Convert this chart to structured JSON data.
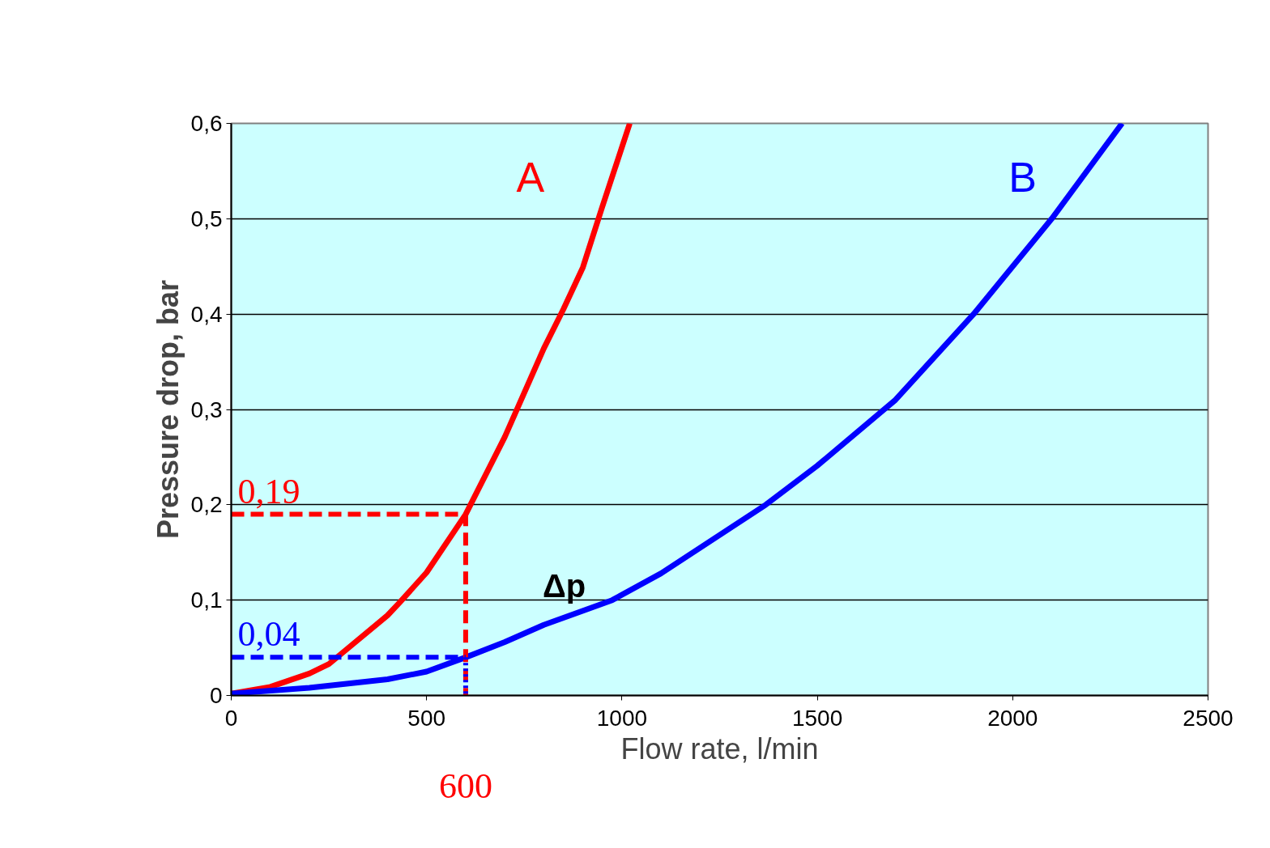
{
  "chart_data": {
    "type": "line",
    "xlabel": "Flow rate, l/min",
    "ylabel": "Pressure drop, bar",
    "xlim": [
      0,
      2500
    ],
    "xticks": [
      0,
      500,
      1000,
      1500,
      2000,
      2500
    ],
    "ylim": [
      0,
      0.6
    ],
    "yticks": [
      {
        "value": 0,
        "label": "0"
      },
      {
        "value": 0.1,
        "label": "0,1"
      },
      {
        "value": 0.2,
        "label": "0,2"
      },
      {
        "value": 0.3,
        "label": "0,3"
      },
      {
        "value": 0.4,
        "label": "0,4"
      },
      {
        "value": 0.5,
        "label": "0,5"
      },
      {
        "value": 0.6,
        "label": "0,6"
      }
    ],
    "grid": "y",
    "line_style": "solid",
    "series": [
      {
        "name": "A",
        "color": "#ff0000",
        "x": [
          0,
          100,
          200,
          250,
          300,
          400,
          430,
          500,
          600,
          700,
          800,
          850,
          900,
          950,
          1020
        ],
        "values": [
          0.002,
          0.009,
          0.023,
          0.033,
          0.05,
          0.084,
          0.097,
          0.129,
          0.19,
          0.271,
          0.364,
          0.405,
          0.449,
          0.513,
          0.6
        ]
      },
      {
        "name": "B",
        "color": "#0000ff",
        "x": [
          0,
          200,
          400,
          500,
          600,
          700,
          800,
          975,
          1100,
          1368,
          1500,
          1700,
          1900,
          2100,
          2280
        ],
        "values": [
          0.002,
          0.008,
          0.017,
          0.025,
          0.04,
          0.056,
          0.074,
          0.1,
          0.128,
          0.2,
          0.241,
          0.31,
          0.4,
          0.5,
          0.6
        ]
      },
      {
        "color": "#ff0000",
        "line_style": "dashed",
        "x": [
          0,
          600,
          600
        ],
        "values": [
          0.19,
          0.19,
          0
        ]
      },
      {
        "color": "#0000ff",
        "line_style": "dashed",
        "x": [
          0,
          600
        ],
        "values": [
          0.04,
          0.04
        ]
      },
      {
        "color": "#0000ff",
        "line_style": "dotted",
        "x": [
          600,
          600
        ],
        "values": [
          0.04,
          0
        ]
      }
    ],
    "annotations": [
      "0,19",
      "0,04",
      "600",
      "Δp"
    ]
  }
}
